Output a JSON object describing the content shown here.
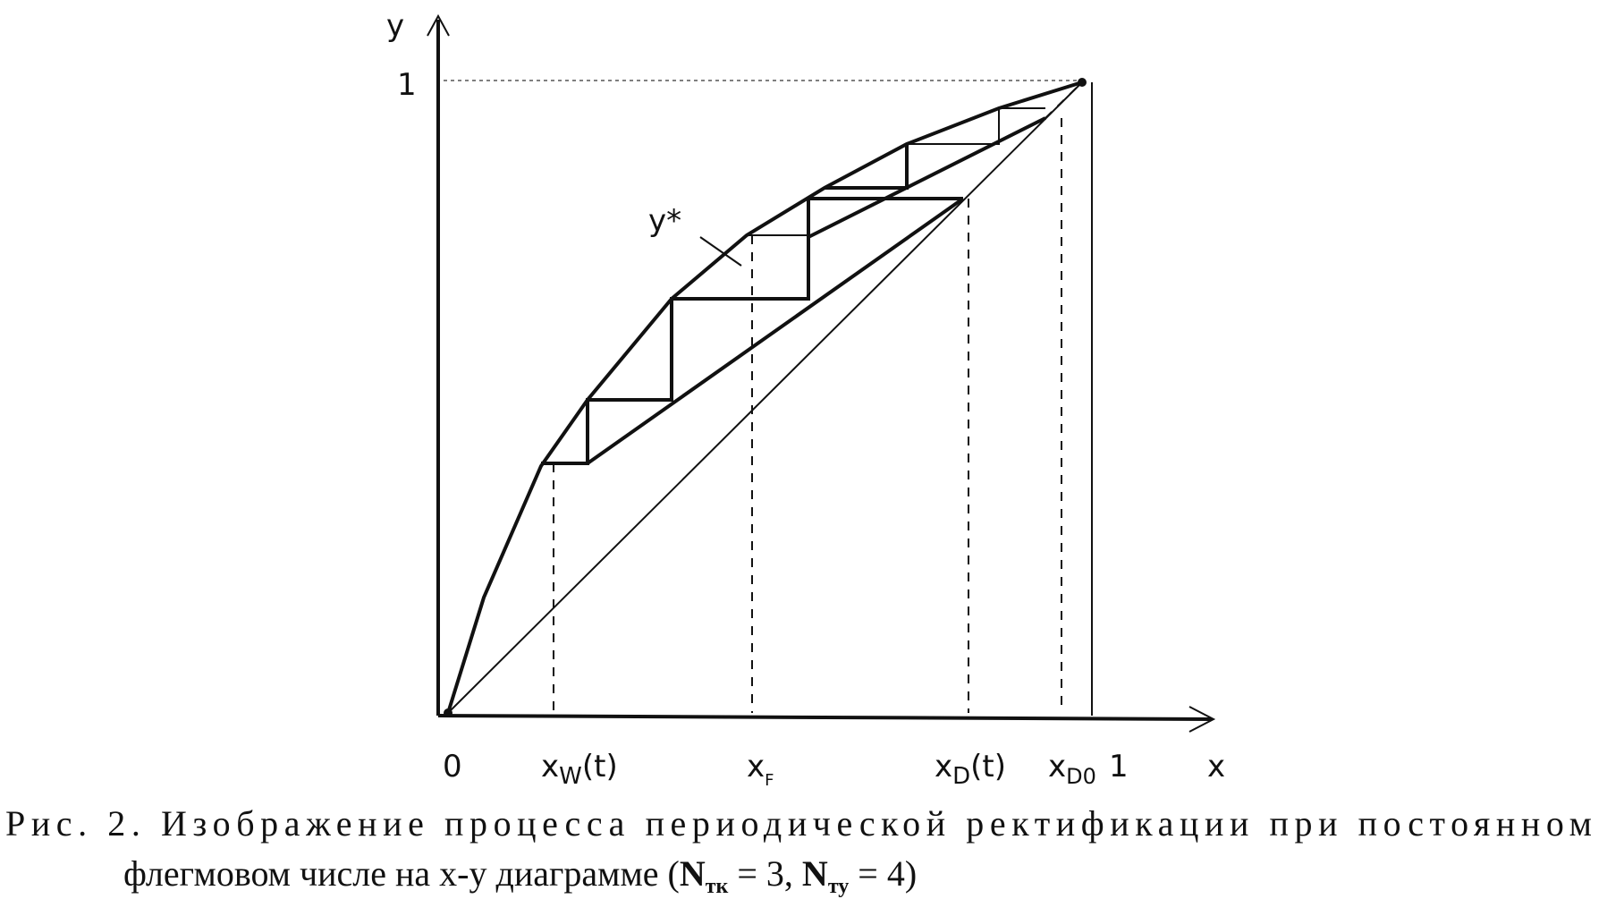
{
  "axes": {
    "y": "y",
    "y_one": "1",
    "x": "x",
    "origin": "0",
    "x_one": "1"
  },
  "curve_label": "y*",
  "x_labels": [
    {
      "main": "x",
      "sub": "W",
      "suffix": "(t)"
    },
    {
      "main": "x",
      "sub": "F"
    },
    {
      "main": "x",
      "sub": "D",
      "suffix": "(t)"
    },
    {
      "main": "x",
      "sub": "D0"
    }
  ],
  "caption": {
    "line1": "Рис. 2. Изображение процесса периодической ректификации при постоянном",
    "line2": [
      "флегмовом числе на x-y диаграмме (",
      "N",
      "тк",
      " = 3, ",
      "N",
      "ту",
      " = 4)"
    ]
  }
}
